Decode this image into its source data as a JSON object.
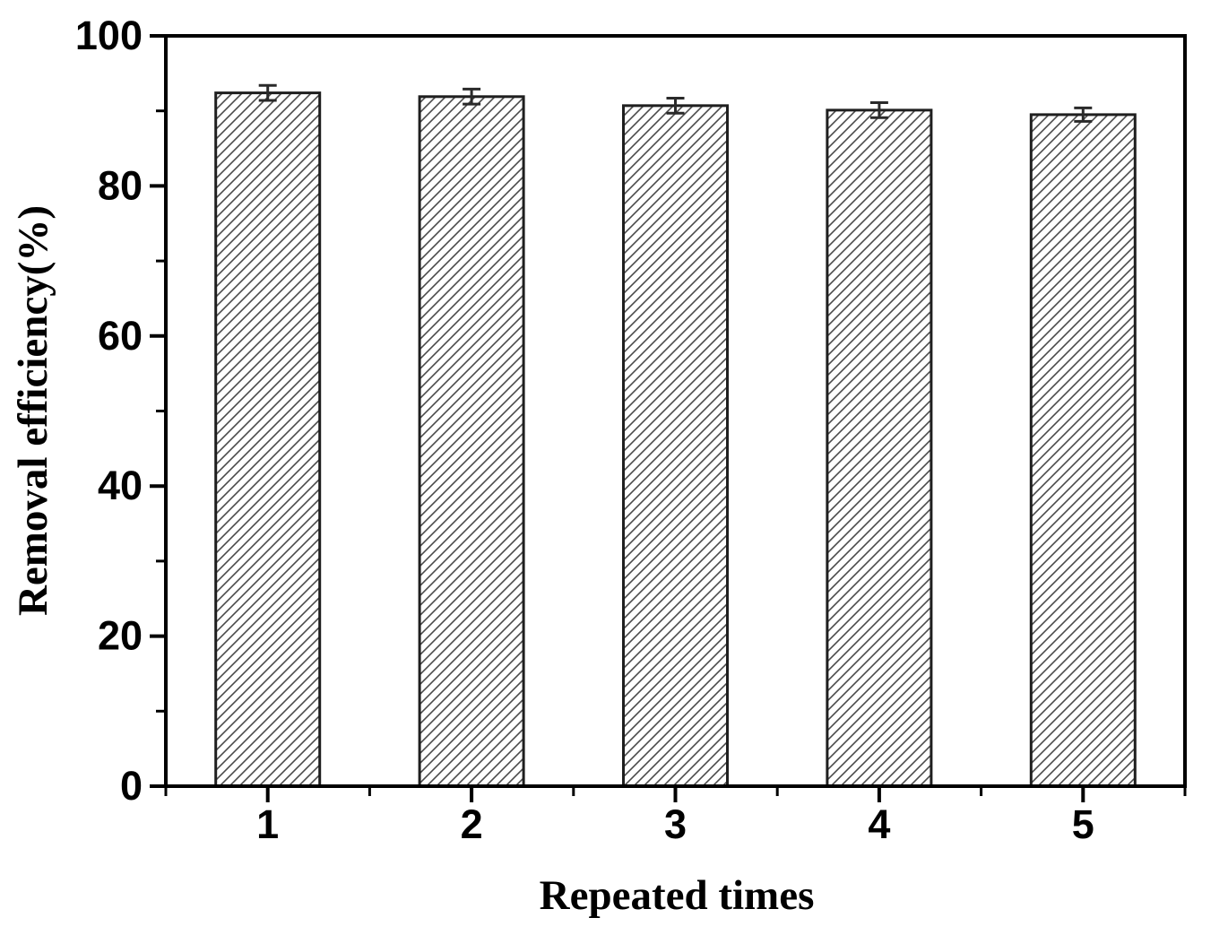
{
  "figure": {
    "background": "#ffffff"
  },
  "chart_data": {
    "type": "bar",
    "title": "",
    "xlabel": "Repeated times",
    "ylabel": "Removal efficiency(%)",
    "categories": [
      "1",
      "2",
      "3",
      "4",
      "5"
    ],
    "values": [
      92.4,
      91.9,
      90.7,
      90.1,
      89.5
    ],
    "errors": [
      1.0,
      1.0,
      1.0,
      1.0,
      0.9
    ],
    "ylim": [
      0,
      100
    ],
    "y_major_ticks": [
      0,
      20,
      40,
      60,
      80,
      100
    ],
    "y_minor_ticks": [
      10,
      30,
      50,
      70,
      90
    ],
    "grid": false,
    "legend": false,
    "frame": "full-box",
    "bar_style": {
      "fill": "#ffffff",
      "hatch": "diagonal-forward",
      "hatch_color": "#4a4a4a",
      "edge_color": "#1f1f1f"
    },
    "error_bar_color": "#2a2a2a",
    "axis_color": "#000000",
    "text_color": "#000000"
  }
}
